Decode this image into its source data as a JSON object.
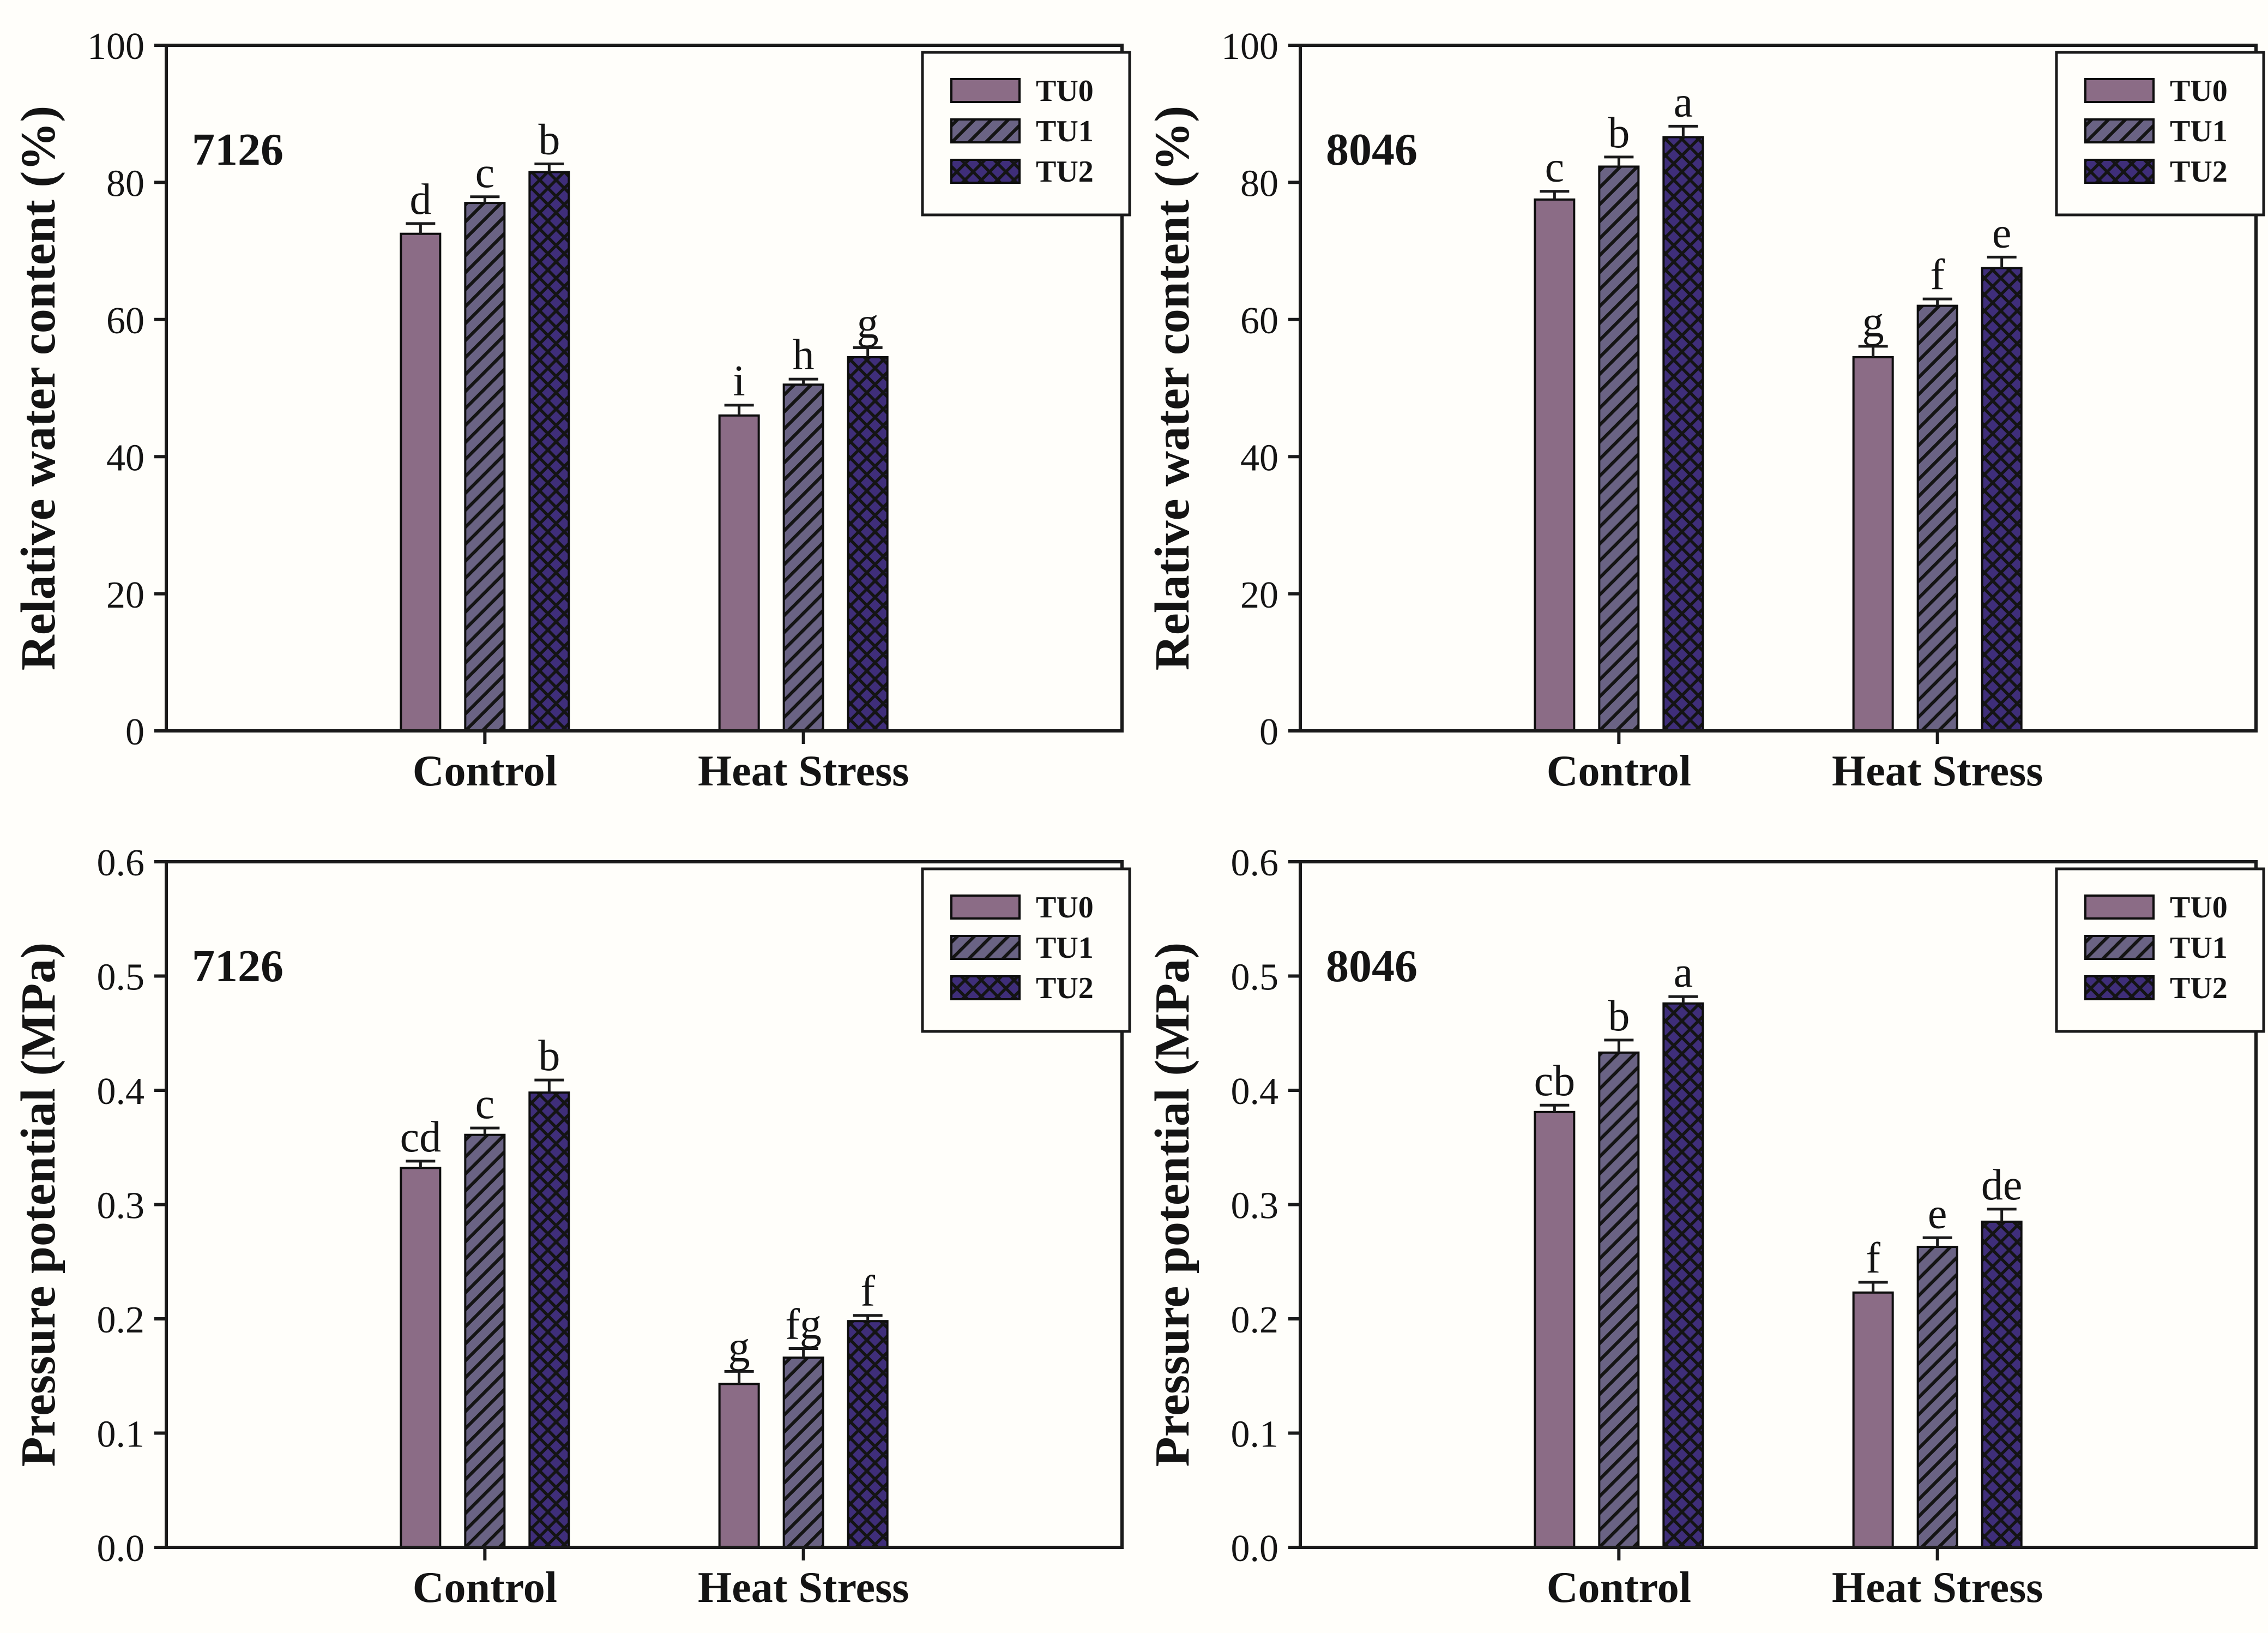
{
  "figure": {
    "background": "#fffefa",
    "text_color": "#141414",
    "axis_color": "#1a1a1a",
    "hatch_color": "#141414",
    "legend_labels": [
      "TU0",
      "TU1",
      "TU2"
    ],
    "series_styles": [
      {
        "name": "TU0",
        "fill": "#8b6c86",
        "pattern": "solid"
      },
      {
        "name": "TU1",
        "fill": "#6a6384",
        "pattern": "diagonal-hatch"
      },
      {
        "name": "TU2",
        "fill": "#3f2e7a",
        "pattern": "diamond-crosshatch"
      }
    ]
  },
  "chart_data": [
    {
      "type": "bar",
      "panel_label": "7126",
      "ylabel": "Relative water content (%)",
      "xlabel": "",
      "categories": [
        "Control",
        "Heat Stress"
      ],
      "ylim": [
        0,
        100
      ],
      "yticks": [
        0,
        20,
        40,
        60,
        80,
        100
      ],
      "ytick_labels": [
        "0",
        "20",
        "40",
        "60",
        "80",
        "100"
      ],
      "grid": false,
      "legend_position": "top-right",
      "series": [
        {
          "name": "TU0",
          "values": [
            72.5,
            46.0
          ],
          "errors": [
            1.5,
            1.5
          ],
          "sig_letters": [
            "d",
            "i"
          ]
        },
        {
          "name": "TU1",
          "values": [
            77.0,
            50.5
          ],
          "errors": [
            0.9,
            0.8
          ],
          "sig_letters": [
            "c",
            "h"
          ]
        },
        {
          "name": "TU2",
          "values": [
            81.5,
            54.5
          ],
          "errors": [
            1.2,
            1.4
          ],
          "sig_letters": [
            "b",
            "g"
          ]
        }
      ]
    },
    {
      "type": "bar",
      "panel_label": "8046",
      "ylabel": "Relative water content (%)",
      "xlabel": "",
      "categories": [
        "Control",
        "Heat Stress"
      ],
      "ylim": [
        0,
        100
      ],
      "yticks": [
        0,
        20,
        40,
        60,
        80,
        100
      ],
      "ytick_labels": [
        "0",
        "20",
        "40",
        "60",
        "80",
        "100"
      ],
      "grid": false,
      "legend_position": "top-right",
      "series": [
        {
          "name": "TU0",
          "values": [
            77.5,
            54.5
          ],
          "errors": [
            1.2,
            1.6
          ],
          "sig_letters": [
            "c",
            "g"
          ]
        },
        {
          "name": "TU1",
          "values": [
            82.3,
            62.0
          ],
          "errors": [
            1.4,
            1.0
          ],
          "sig_letters": [
            "b",
            "f"
          ]
        },
        {
          "name": "TU2",
          "values": [
            86.6,
            67.5
          ],
          "errors": [
            1.6,
            1.6
          ],
          "sig_letters": [
            "a",
            "e"
          ]
        }
      ]
    },
    {
      "type": "bar",
      "panel_label": "7126",
      "ylabel": "Pressure potential (MPa)",
      "xlabel": "",
      "categories": [
        "Control",
        "Heat Stress"
      ],
      "ylim": [
        0,
        0.6
      ],
      "yticks": [
        0,
        0.1,
        0.2,
        0.3,
        0.4,
        0.5,
        0.6
      ],
      "ytick_labels": [
        "0.0",
        "0.1",
        "0.2",
        "0.3",
        "0.4",
        "0.5",
        "0.6"
      ],
      "grid": false,
      "legend_position": "top-right",
      "series": [
        {
          "name": "TU0",
          "values": [
            0.332,
            0.143
          ],
          "errors": [
            0.006,
            0.011
          ],
          "sig_letters": [
            "cd",
            "g"
          ]
        },
        {
          "name": "TU1",
          "values": [
            0.361,
            0.166
          ],
          "errors": [
            0.006,
            0.008
          ],
          "sig_letters": [
            "c",
            "fg"
          ]
        },
        {
          "name": "TU2",
          "values": [
            0.398,
            0.198
          ],
          "errors": [
            0.011,
            0.005
          ],
          "sig_letters": [
            "b",
            "f"
          ]
        }
      ]
    },
    {
      "type": "bar",
      "panel_label": "8046",
      "ylabel": "Pressure potential (MPa)",
      "xlabel": "",
      "categories": [
        "Control",
        "Heat Stress"
      ],
      "ylim": [
        0,
        0.6
      ],
      "yticks": [
        0,
        0.1,
        0.2,
        0.3,
        0.4,
        0.5,
        0.6
      ],
      "ytick_labels": [
        "0.0",
        "0.1",
        "0.2",
        "0.3",
        "0.4",
        "0.5",
        "0.6"
      ],
      "grid": false,
      "legend_position": "top-right",
      "series": [
        {
          "name": "TU0",
          "values": [
            0.381,
            0.223
          ],
          "errors": [
            0.006,
            0.009
          ],
          "sig_letters": [
            "cb",
            "f"
          ]
        },
        {
          "name": "TU1",
          "values": [
            0.433,
            0.263
          ],
          "errors": [
            0.011,
            0.008
          ],
          "sig_letters": [
            "b",
            "e"
          ]
        },
        {
          "name": "TU2",
          "values": [
            0.476,
            0.285
          ],
          "errors": [
            0.006,
            0.011
          ],
          "sig_letters": [
            "a",
            "de"
          ]
        }
      ]
    }
  ]
}
